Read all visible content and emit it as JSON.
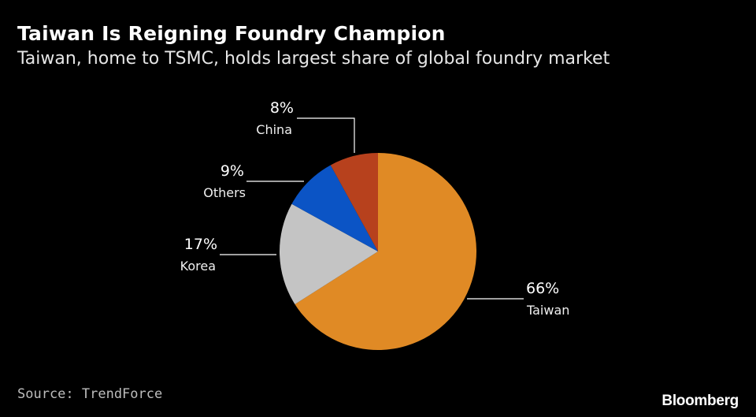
{
  "header": {
    "title": "Taiwan Is Reigning Foundry Champion",
    "subtitle": "Taiwan, home to TSMC, holds largest share of global foundry market"
  },
  "footer": {
    "source": "Source: TrendForce",
    "brand": "Bloomberg"
  },
  "chart_data": {
    "type": "pie",
    "title": "Taiwan Is Reigning Foundry Champion",
    "subtitle": "Taiwan, home to TSMC, holds largest share of global foundry market",
    "slices": [
      {
        "label": "Taiwan",
        "value": 66,
        "value_label": "66%",
        "color": "#e08a25"
      },
      {
        "label": "Korea",
        "value": 17,
        "value_label": "17%",
        "color": "#c4c4c4"
      },
      {
        "label": "Others",
        "value": 9,
        "value_label": "9%",
        "color": "#0b54c5"
      },
      {
        "label": "China",
        "value": 8,
        "value_label": "8%",
        "color": "#b7411d"
      }
    ],
    "start": "top, clockwise",
    "legend": "none"
  }
}
